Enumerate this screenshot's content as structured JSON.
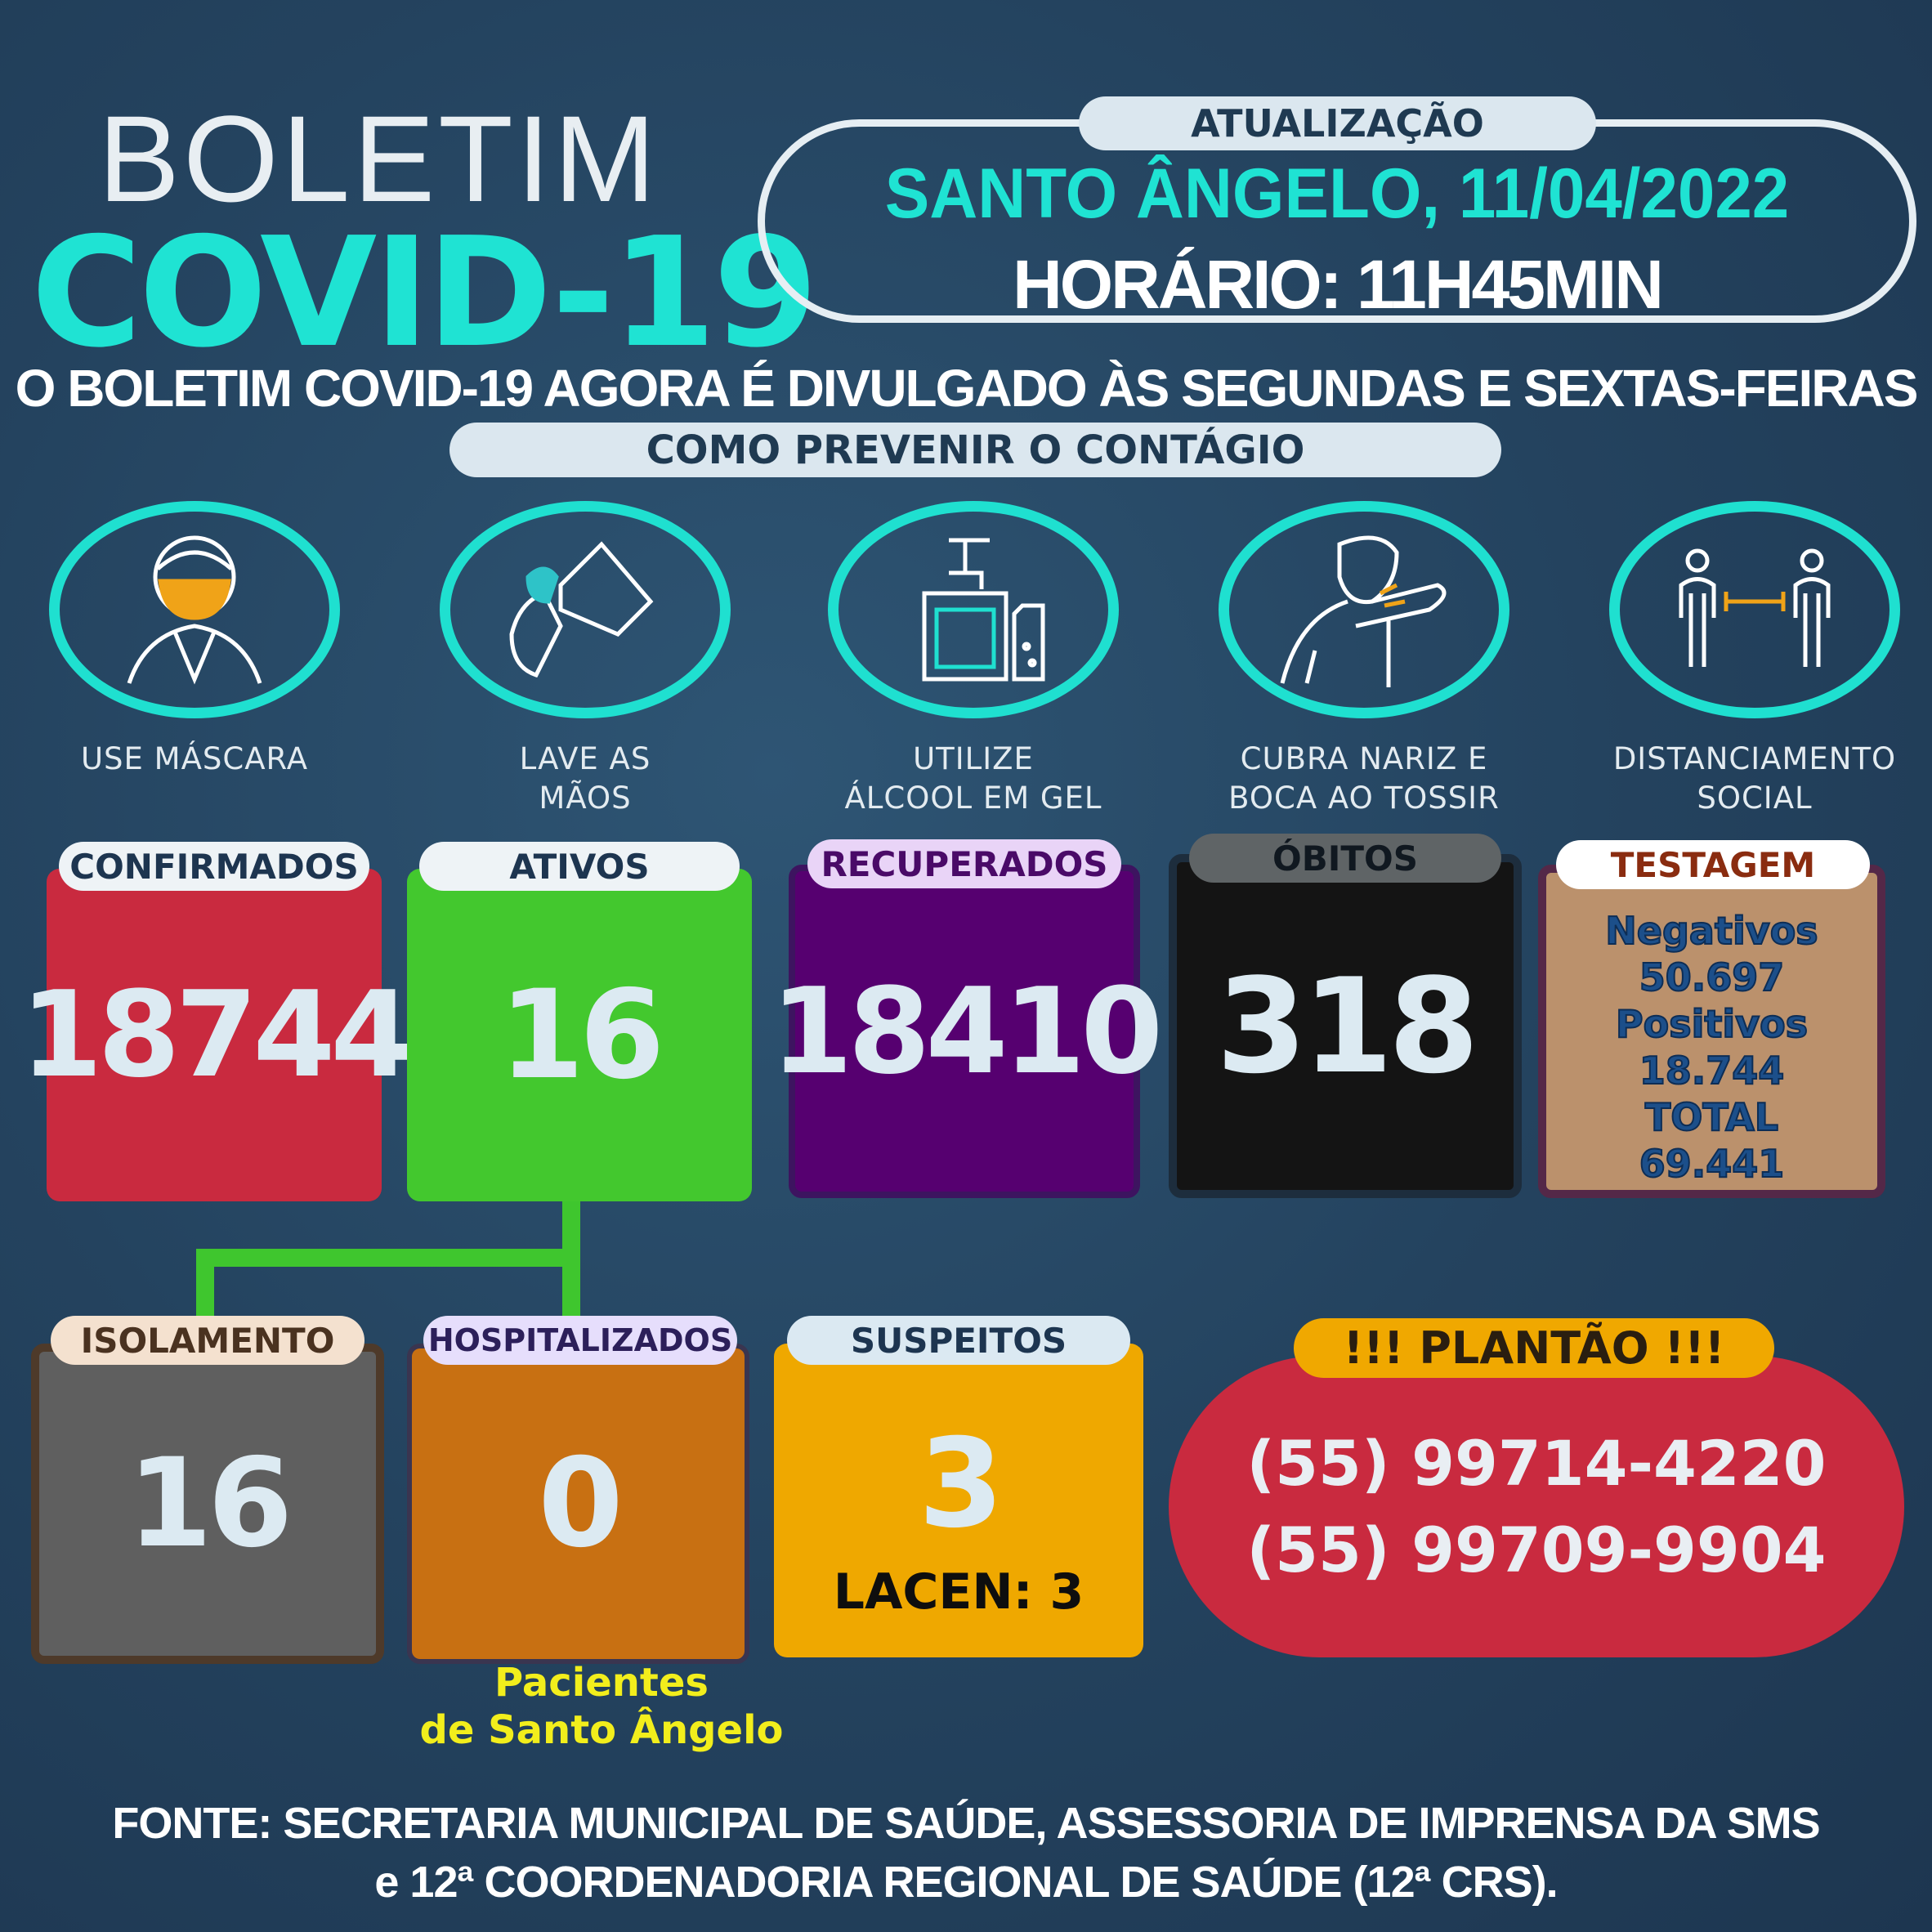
{
  "header": {
    "title_line1": "BOLETIM",
    "title_line2": "COVID-19"
  },
  "update": {
    "label": "ATUALIZAÇÃO",
    "city_date": "SANTO ÂNGELO, 11/04/2022",
    "time": "HORÁRIO: 11H45MIN"
  },
  "notice": "O BOLETIM COVID-19 AGORA É DIVULGADO ÀS SEGUNDAS E SEXTAS-FEIRAS",
  "prevention": {
    "title": "COMO PREVENIR O CONTÁGIO",
    "items": [
      {
        "icon": "mask-icon",
        "line1": "USE MÁSCARA",
        "line2": ""
      },
      {
        "icon": "wash-hands-icon",
        "line1": "LAVE AS",
        "line2": "MÃOS"
      },
      {
        "icon": "sanitizer-icon",
        "line1": "UTILIZE",
        "line2": "ÁLCOOL EM GEL"
      },
      {
        "icon": "cough-icon",
        "line1": "CUBRA NARIZ E",
        "line2": "BOCA AO TOSSIR"
      },
      {
        "icon": "distance-icon",
        "line1": "DISTANCIAMENTO",
        "line2": "SOCIAL"
      }
    ]
  },
  "stats": {
    "confirmados": {
      "label": "CONFIRMADOS",
      "value": "18744",
      "color": "#c92a3f"
    },
    "ativos": {
      "label": "ATIVOS",
      "value": "16",
      "color": "#43c82e"
    },
    "recuperados": {
      "label": "RECUPERADOS",
      "value": "18410",
      "color": "#560070"
    },
    "obitos": {
      "label": "ÓBITOS",
      "value": "318",
      "color": "#141414"
    },
    "testagem": {
      "label": "TESTAGEM",
      "negativos_label": "Negativos",
      "negativos": "50.697",
      "positivos_label": "Positivos",
      "positivos": "18.744",
      "total_label": "TOTAL",
      "total": "69.441",
      "color": "#bb916c"
    },
    "isolamento": {
      "label": "ISOLAMENTO",
      "value": "16",
      "color": "#5f5f5f"
    },
    "hospitalizados": {
      "label": "HOSPITALIZADOS",
      "value": "0",
      "note_line1": "Pacientes",
      "note_line2": "de Santo Ângelo",
      "color": "#c87012"
    },
    "suspeitos": {
      "label": "SUSPEITOS",
      "value": "3",
      "lacen": "LACEN: 3",
      "color": "#efa800"
    }
  },
  "plantao": {
    "label": "!!! PLANTÃO !!!",
    "phones": [
      "(55) 99714-4220",
      "(55) 99709-9904"
    ],
    "color": "#c92a3f"
  },
  "footer": {
    "line1": "FONTE: SECRETARIA MUNICIPAL DE SAÚDE, ASSESSORIA DE IMPRENSA DA SMS",
    "line2": "e 12ª COORDENADORIA REGIONAL DE SAÚDE (12ª CRS)."
  }
}
